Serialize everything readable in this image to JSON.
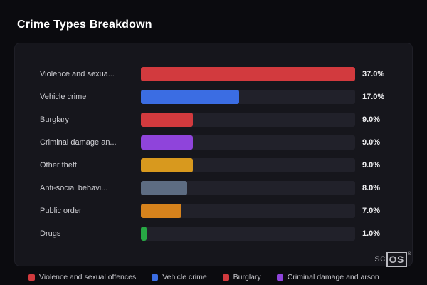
{
  "page": {
    "title": "Crime Types Breakdown"
  },
  "chart_data": {
    "type": "bar",
    "orientation": "horizontal",
    "title": "Crime Types Breakdown",
    "xlabel": "",
    "ylabel": "",
    "max_value": 37.0,
    "grid": false,
    "legend_position": "bottom",
    "categories": [
      "Violence and sexua...",
      "Vehicle crime",
      "Burglary",
      "Criminal damage an...",
      "Other theft",
      "Anti-social behavi...",
      "Public order",
      "Drugs"
    ],
    "values": [
      37.0,
      17.0,
      9.0,
      9.0,
      9.0,
      8.0,
      7.0,
      1.0
    ],
    "value_labels": [
      "37.0%",
      "17.0%",
      "9.0%",
      "9.0%",
      "9.0%",
      "8.0%",
      "7.0%",
      "1.0%"
    ],
    "bar_colors": [
      "#d23a3e",
      "#3b6de3",
      "#d23a3e",
      "#8f44db",
      "#d8991e",
      "#5d6c82",
      "#d6821c",
      "#27a844"
    ],
    "legend": [
      {
        "label": "Violence and sexual offences",
        "color": "#d23a3e"
      },
      {
        "label": "Vehicle crime",
        "color": "#3b6de3"
      },
      {
        "label": "Burglary",
        "color": "#d23a3e"
      },
      {
        "label": "Criminal damage and arson",
        "color": "#8f44db"
      }
    ]
  },
  "branding": {
    "prefix": "sc",
    "box": "OS",
    "registered": "®"
  }
}
